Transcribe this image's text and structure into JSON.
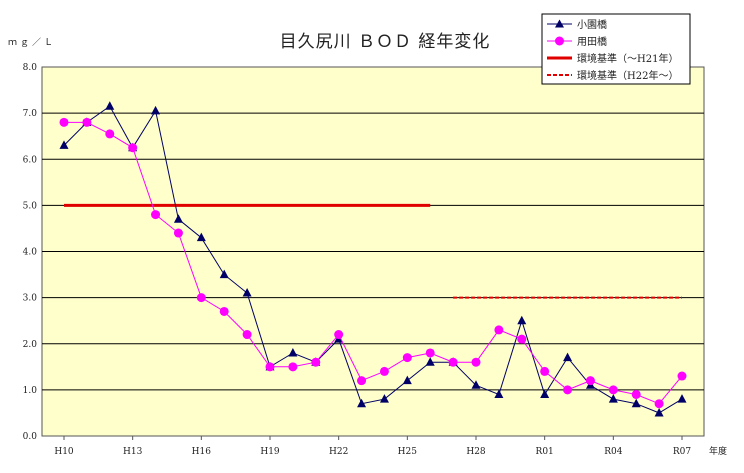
{
  "chart_data": {
    "type": "line",
    "title": "目久尻川 ＢＯＤ 経年変化",
    "ylabel": "ｍｇ／Ｌ",
    "xlabel": "年度",
    "ylim": [
      0,
      8
    ],
    "y_ticks": [
      "0.0",
      "1.0",
      "2.0",
      "3.0",
      "4.0",
      "5.0",
      "6.0",
      "7.0",
      "8.0"
    ],
    "x": [
      "H10",
      "H11",
      "H12",
      "H13",
      "H14",
      "H15",
      "H16",
      "H17",
      "H18",
      "H19",
      "H20",
      "H21",
      "H22",
      "H23",
      "H24",
      "H25",
      "H26",
      "H27",
      "H28",
      "H29",
      "H30",
      "R01",
      "R02",
      "R03",
      "R04",
      "R05",
      "R06",
      "R07"
    ],
    "x_tick_labels": [
      "H10",
      "",
      "",
      "H13",
      "",
      "",
      "H16",
      "",
      "",
      "H19",
      "",
      "",
      "H22",
      "",
      "",
      "H25",
      "",
      "",
      "H28",
      "",
      "",
      "R01",
      "",
      "",
      "R04",
      "",
      "",
      "R07"
    ],
    "grid": true,
    "legend_position": "top-right",
    "series": [
      {
        "name": "小園橋",
        "color": "#000066",
        "marker": "triangle",
        "values": [
          6.3,
          6.8,
          7.15,
          6.25,
          7.05,
          4.7,
          4.3,
          3.5,
          3.1,
          1.5,
          1.8,
          1.6,
          2.1,
          0.7,
          0.8,
          1.2,
          1.6,
          1.6,
          1.1,
          0.9,
          2.5,
          0.9,
          1.7,
          1.1,
          0.8,
          0.7,
          0.5,
          0.8
        ]
      },
      {
        "name": "用田橋",
        "color": "#ff00ff",
        "marker": "circle",
        "values": [
          6.8,
          6.8,
          6.55,
          6.25,
          4.8,
          4.4,
          3.0,
          2.7,
          2.2,
          1.5,
          1.5,
          1.6,
          2.2,
          1.2,
          1.4,
          1.7,
          1.8,
          1.6,
          1.6,
          2.3,
          2.1,
          1.4,
          1.0,
          1.2,
          1.0,
          0.9,
          0.7,
          1.3
        ]
      }
    ],
    "standards": [
      {
        "name": "環境基準（～H21年）",
        "value": 5.0,
        "from": "H10",
        "to": "H26",
        "color": "#e00000",
        "style": "solid"
      },
      {
        "name": "環境基準（H22年～）",
        "value": 3.0,
        "from": "H27",
        "to": "R07",
        "color": "#e00000",
        "style": "dashed"
      }
    ],
    "colors": {
      "plot_background": "#ffffcc",
      "gridline": "#000000"
    }
  }
}
